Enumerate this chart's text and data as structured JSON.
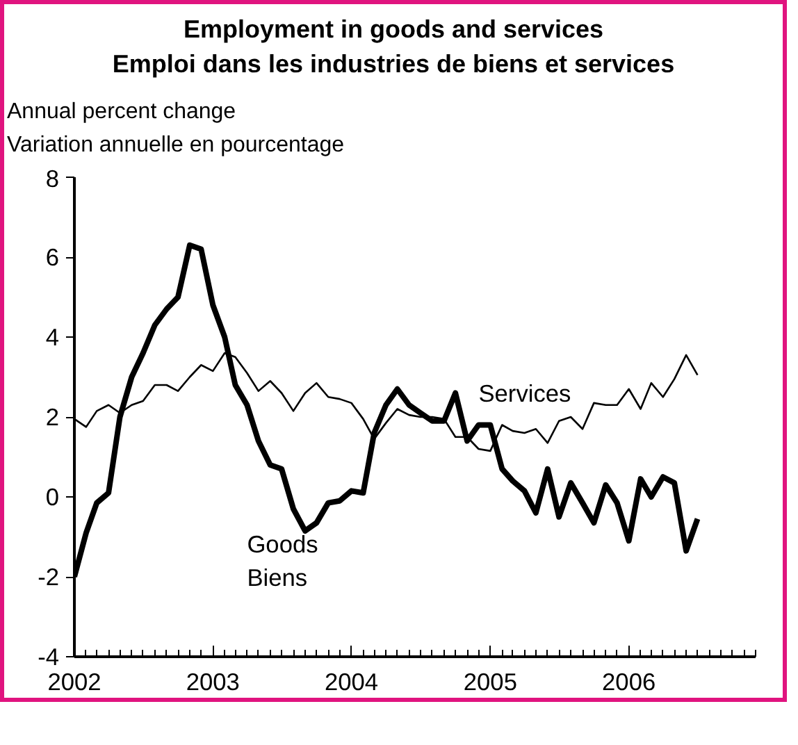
{
  "chart_data": {
    "type": "line",
    "title": "Employment in goods and services\nEmploi dans les industries de biens et services",
    "subtitle": "Annual percent change\nVariation annuelle en pourcentage",
    "x": [
      "2002-01",
      "2002-02",
      "2002-03",
      "2002-04",
      "2002-05",
      "2002-06",
      "2002-07",
      "2002-08",
      "2002-09",
      "2002-10",
      "2002-11",
      "2002-12",
      "2003-01",
      "2003-02",
      "2003-03",
      "2003-04",
      "2003-05",
      "2003-06",
      "2003-07",
      "2003-08",
      "2003-09",
      "2003-10",
      "2003-11",
      "2003-12",
      "2004-01",
      "2004-02",
      "2004-03",
      "2004-04",
      "2004-05",
      "2004-06",
      "2004-07",
      "2004-08",
      "2004-09",
      "2004-10",
      "2004-11",
      "2004-12",
      "2005-01",
      "2005-02",
      "2005-03",
      "2005-04",
      "2005-05",
      "2005-06",
      "2005-07",
      "2005-08",
      "2005-09",
      "2005-10",
      "2005-11",
      "2005-12",
      "2006-01",
      "2006-02",
      "2006-03",
      "2006-04",
      "2006-05",
      "2006-06",
      "2006-07"
    ],
    "series": [
      {
        "name": "Goods\nBiens",
        "color": "#000000",
        "values": [
          -2.0,
          -0.9,
          -0.15,
          0.1,
          2.0,
          3.0,
          3.6,
          4.3,
          4.7,
          5.0,
          6.3,
          6.2,
          4.8,
          4.0,
          2.8,
          2.3,
          1.4,
          0.8,
          0.7,
          -0.3,
          -0.85,
          -0.65,
          -0.15,
          -0.1,
          0.15,
          0.1,
          1.6,
          2.3,
          2.7,
          2.3,
          2.1,
          1.9,
          1.9,
          2.6,
          1.4,
          1.8,
          1.8,
          0.7,
          0.4,
          0.15,
          -0.4,
          0.7,
          -0.5,
          0.35,
          -0.15,
          -0.65,
          0.3,
          -0.15,
          -1.1,
          0.45,
          0.0,
          0.5,
          0.35,
          -1.35,
          -0.55
        ]
      },
      {
        "name": "Services",
        "color": "#000000",
        "values": [
          1.95,
          1.75,
          2.15,
          2.3,
          2.1,
          2.3,
          2.4,
          2.8,
          2.8,
          2.65,
          3.0,
          3.3,
          3.15,
          3.6,
          3.5,
          3.1,
          2.65,
          2.9,
          2.6,
          2.15,
          2.6,
          2.85,
          2.5,
          2.45,
          2.35,
          1.95,
          1.45,
          1.85,
          2.2,
          2.05,
          2.0,
          2.0,
          1.95,
          1.5,
          1.5,
          1.2,
          1.15,
          1.8,
          1.65,
          1.6,
          1.7,
          1.35,
          1.9,
          2.0,
          1.7,
          2.35,
          2.3,
          2.3,
          2.7,
          2.2,
          2.85,
          2.5,
          2.95,
          3.55,
          3.05
        ]
      }
    ],
    "xlim": [
      "2002-01",
      "2006-12"
    ],
    "xticks": [
      "2002",
      "2003",
      "2004",
      "2005",
      "2006"
    ],
    "ylim": [
      -4,
      8
    ],
    "yticks": [
      -4,
      -2,
      0,
      2,
      4,
      6,
      8
    ],
    "grid": false,
    "legend": false
  }
}
